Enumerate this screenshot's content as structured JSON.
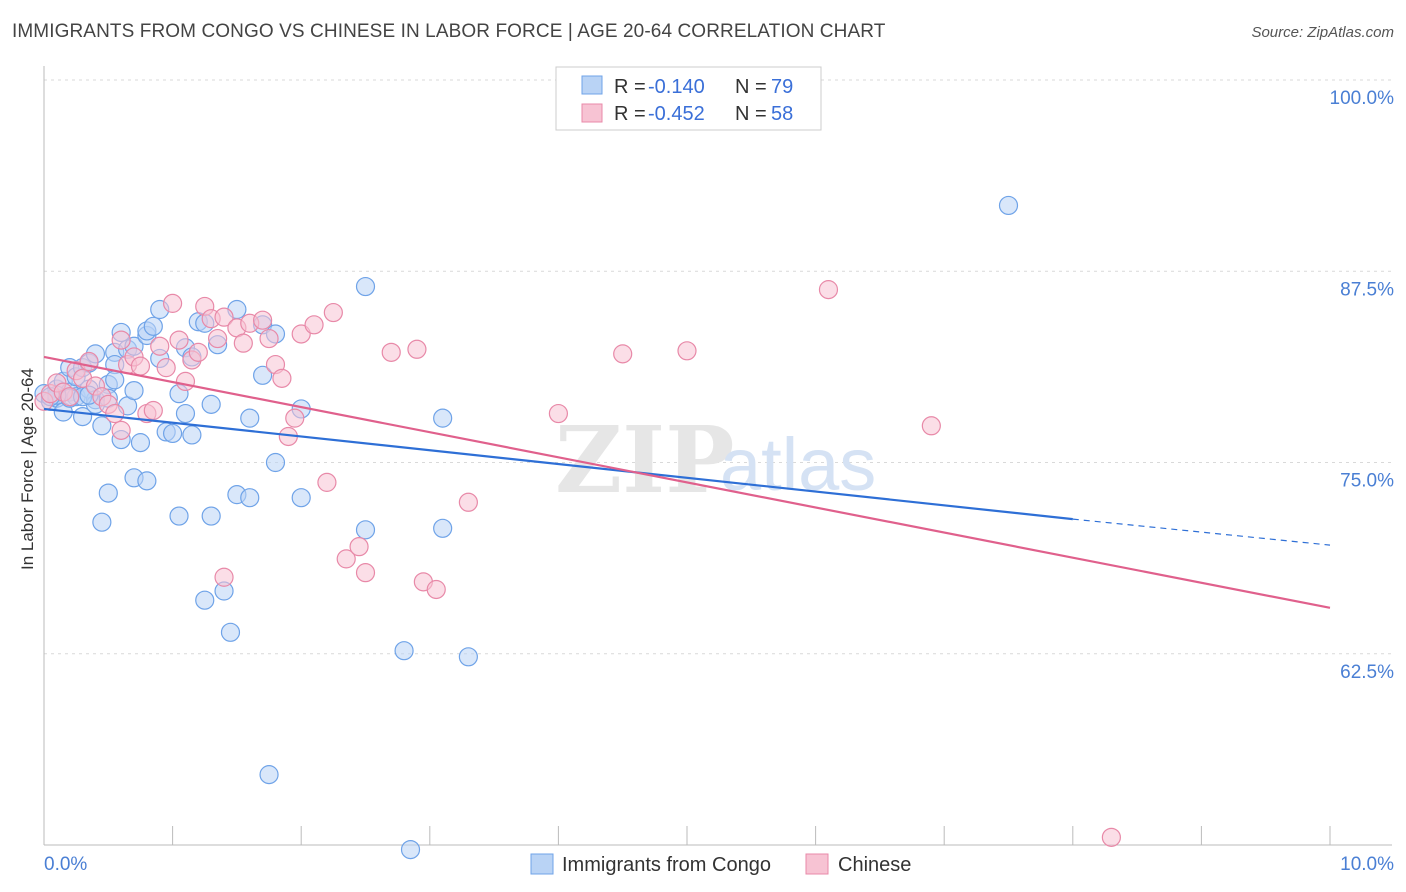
{
  "chart_data": {
    "type": "scatter",
    "title": "IMMIGRANTS FROM CONGO VS CHINESE IN LABOR FORCE | AGE 20-64 CORRELATION CHART",
    "source": "Source: ZipAtlas.com",
    "xlabel": "",
    "ylabel": "In Labor Force | Age 20-64",
    "xlim": [
      0,
      10
    ],
    "ylim": [
      50,
      100
    ],
    "x_tick_labels": [
      "0.0%",
      "10.0%"
    ],
    "y_ticks": [
      {
        "value": 100,
        "label": "100.0%"
      },
      {
        "value": 87.5,
        "label": "87.5%"
      },
      {
        "value": 75,
        "label": "75.0%"
      },
      {
        "value": 62.5,
        "label": "62.5%"
      }
    ],
    "watermark": {
      "zip": "ZIP",
      "atlas": "atlas"
    },
    "legend": [
      {
        "r_label": "R =",
        "r_value": "-0.140",
        "n_label": "N =",
        "n_value": "79",
        "color": "#6fa3e8",
        "fill": "#b9d3f5"
      },
      {
        "r_label": "R =",
        "r_value": "-0.452",
        "n_label": "N =",
        "n_value": "58",
        "color": "#e889a8",
        "fill": "#f7c3d3"
      }
    ],
    "series": [
      {
        "name": "Immigrants from Congo",
        "color": "#6fa3e8",
        "fill": "#b9d3f5",
        "trend": {
          "x0": 0,
          "y0": 78.5,
          "x1": 8.0,
          "y1": 71.3,
          "dash_to_x": 10.0,
          "dash_to_y": 69.6,
          "color": "#2e6fd6"
        },
        "points": [
          [
            0.0,
            79.5
          ],
          [
            0.05,
            79.0
          ],
          [
            0.1,
            79.8
          ],
          [
            0.1,
            79.2
          ],
          [
            0.15,
            80.3
          ],
          [
            0.15,
            78.3
          ],
          [
            0.2,
            81.2
          ],
          [
            0.2,
            79.6
          ],
          [
            0.25,
            80.6
          ],
          [
            0.25,
            79.3
          ],
          [
            0.3,
            81.2
          ],
          [
            0.3,
            78.0
          ],
          [
            0.35,
            81.5
          ],
          [
            0.35,
            79.8
          ],
          [
            0.4,
            82.1
          ],
          [
            0.4,
            79.1
          ],
          [
            0.45,
            77.4
          ],
          [
            0.4,
            78.8
          ],
          [
            0.5,
            80.1
          ],
          [
            0.5,
            79.2
          ],
          [
            0.55,
            82.2
          ],
          [
            0.55,
            81.4
          ],
          [
            0.6,
            83.5
          ],
          [
            0.65,
            82.4
          ],
          [
            0.6,
            76.5
          ],
          [
            0.7,
            82.6
          ],
          [
            0.7,
            74.0
          ],
          [
            0.75,
            76.3
          ],
          [
            0.8,
            83.3
          ],
          [
            0.8,
            83.6
          ],
          [
            0.85,
            83.9
          ],
          [
            0.9,
            81.8
          ],
          [
            0.95,
            77.0
          ],
          [
            1.0,
            76.9
          ],
          [
            1.05,
            79.5
          ],
          [
            1.1,
            82.5
          ],
          [
            1.1,
            78.2
          ],
          [
            1.15,
            81.9
          ],
          [
            1.15,
            76.8
          ],
          [
            1.2,
            84.2
          ],
          [
            1.25,
            84.1
          ],
          [
            1.3,
            78.8
          ],
          [
            1.35,
            82.7
          ],
          [
            1.5,
            72.9
          ],
          [
            1.6,
            77.9
          ],
          [
            1.6,
            72.7
          ],
          [
            1.7,
            80.7
          ],
          [
            1.7,
            84.0
          ],
          [
            1.8,
            75.0
          ],
          [
            2.0,
            72.7
          ],
          [
            2.5,
            70.6
          ],
          [
            2.8,
            62.7
          ],
          [
            3.1,
            77.9
          ],
          [
            3.1,
            70.7
          ],
          [
            1.4,
            66.6
          ],
          [
            1.45,
            63.9
          ],
          [
            2.85,
            49.7
          ],
          [
            3.3,
            62.3
          ],
          [
            0.5,
            73.0
          ],
          [
            0.8,
            73.8
          ],
          [
            7.5,
            91.8
          ],
          [
            1.8,
            83.4
          ],
          [
            1.3,
            71.5
          ],
          [
            1.25,
            66.0
          ],
          [
            1.75,
            54.6
          ],
          [
            0.45,
            71.1
          ],
          [
            0.9,
            85.0
          ],
          [
            1.5,
            85.0
          ],
          [
            2.0,
            78.5
          ],
          [
            2.5,
            86.5
          ],
          [
            1.05,
            71.5
          ],
          [
            0.2,
            79.2
          ],
          [
            0.3,
            79.3
          ],
          [
            0.1,
            79.4
          ],
          [
            0.05,
            79.3
          ],
          [
            0.65,
            78.7
          ],
          [
            0.7,
            79.7
          ],
          [
            0.55,
            80.4
          ],
          [
            0.35,
            79.4
          ]
        ]
      },
      {
        "name": "Chinese",
        "color": "#e889a8",
        "fill": "#f7c3d3",
        "trend": {
          "x0": 0,
          "y0": 81.9,
          "x1": 10.0,
          "y1": 65.5,
          "color": "#e0608c"
        },
        "points": [
          [
            0.0,
            79.0
          ],
          [
            0.05,
            79.5
          ],
          [
            0.1,
            80.2
          ],
          [
            0.15,
            79.6
          ],
          [
            0.2,
            79.3
          ],
          [
            0.25,
            81.0
          ],
          [
            0.3,
            80.5
          ],
          [
            0.35,
            81.6
          ],
          [
            0.4,
            80.0
          ],
          [
            0.45,
            79.3
          ],
          [
            0.5,
            78.8
          ],
          [
            0.55,
            78.2
          ],
          [
            0.6,
            77.1
          ],
          [
            0.65,
            81.4
          ],
          [
            0.7,
            81.9
          ],
          [
            0.75,
            81.3
          ],
          [
            0.8,
            78.2
          ],
          [
            0.85,
            78.4
          ],
          [
            0.9,
            82.6
          ],
          [
            0.95,
            81.2
          ],
          [
            1.0,
            85.4
          ],
          [
            1.05,
            83.0
          ],
          [
            1.1,
            80.3
          ],
          [
            1.15,
            81.7
          ],
          [
            1.2,
            82.2
          ],
          [
            1.25,
            85.2
          ],
          [
            1.3,
            84.4
          ],
          [
            1.35,
            83.1
          ],
          [
            1.4,
            84.5
          ],
          [
            1.5,
            83.8
          ],
          [
            1.55,
            82.8
          ],
          [
            1.6,
            84.1
          ],
          [
            1.7,
            84.3
          ],
          [
            1.75,
            83.1
          ],
          [
            1.8,
            81.4
          ],
          [
            1.85,
            80.5
          ],
          [
            1.9,
            76.7
          ],
          [
            1.95,
            77.9
          ],
          [
            2.0,
            83.4
          ],
          [
            2.1,
            84.0
          ],
          [
            2.25,
            84.8
          ],
          [
            2.2,
            73.7
          ],
          [
            2.35,
            68.7
          ],
          [
            2.5,
            67.8
          ],
          [
            2.45,
            69.5
          ],
          [
            2.7,
            82.2
          ],
          [
            2.9,
            82.4
          ],
          [
            2.95,
            67.2
          ],
          [
            3.05,
            66.7
          ],
          [
            3.3,
            72.4
          ],
          [
            4.0,
            78.2
          ],
          [
            4.5,
            82.1
          ],
          [
            5.0,
            82.3
          ],
          [
            6.9,
            77.4
          ],
          [
            6.1,
            86.3
          ],
          [
            8.3,
            50.5
          ],
          [
            1.4,
            67.5
          ],
          [
            0.6,
            83.0
          ]
        ]
      }
    ]
  }
}
